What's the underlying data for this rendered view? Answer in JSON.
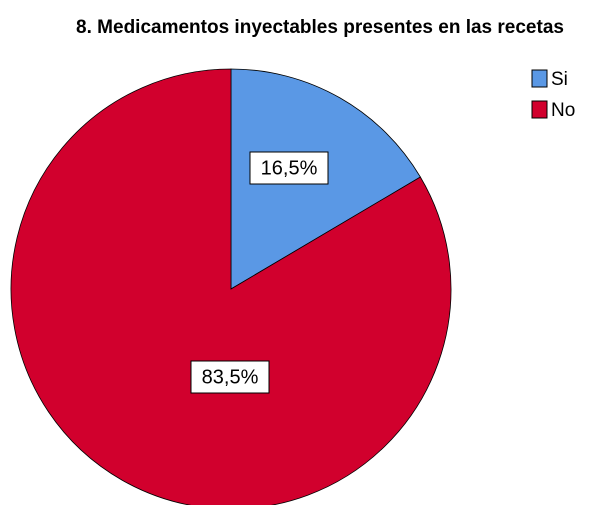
{
  "chart_data": {
    "type": "pie",
    "title": "8. Medicamentos inyectables presentes en las recetas",
    "categories": [
      "Si",
      "No"
    ],
    "values": [
      16.5,
      83.5
    ],
    "value_labels": [
      "16,5%",
      "83,5%"
    ],
    "colors": [
      "#5a98e5",
      "#d1002d"
    ],
    "legend": "top-right"
  }
}
